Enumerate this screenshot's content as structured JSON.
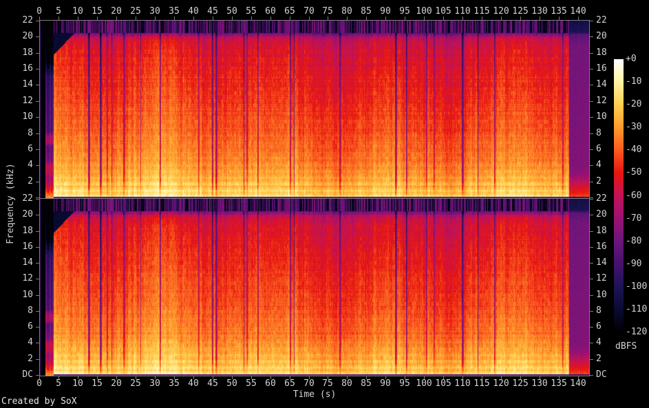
{
  "credit": "Created by SoX",
  "labels": {
    "time": "Time (s)",
    "frequency": "Frequency (kHz)",
    "dbfs": "dBFS"
  },
  "axes": {
    "time": {
      "label": "Time (s)",
      "tick_values": [
        0,
        5,
        10,
        15,
        20,
        25,
        30,
        35,
        40,
        45,
        50,
        55,
        60,
        65,
        70,
        75,
        80,
        85,
        90,
        95,
        100,
        105,
        110,
        115,
        120,
        125,
        130,
        135,
        140
      ]
    },
    "frequency": {
      "label": "Frequency (kHz)",
      "tick_values": [
        22,
        20,
        18,
        16,
        14,
        12,
        10,
        8,
        6,
        4,
        2,
        0
      ],
      "tick_labels": [
        "22",
        "20",
        "18",
        "16",
        "14",
        "12",
        "10",
        "8",
        "6",
        "4",
        "2",
        "DC"
      ]
    },
    "level": {
      "label": "dBFS",
      "tick_labels": [
        "+0",
        "-10",
        "-20",
        "-30",
        "-40",
        "-50",
        "-60",
        "-70",
        "-80",
        "-90",
        "-100",
        "-110",
        "-120"
      ]
    }
  },
  "chart_data": {
    "type": "heatmap",
    "subtype": "stereo-audio-spectrogram",
    "generator": "SoX spectrogram",
    "channels": 2,
    "x_axis": {
      "label": "Time (s)",
      "min": 0,
      "max": 143,
      "tick_step": 5,
      "last_tick": 140
    },
    "y_axis": {
      "label": "Frequency (kHz)",
      "min": 0,
      "max": 22,
      "tick_step": 2,
      "bottom_label": "DC"
    },
    "z_axis": {
      "label": "dBFS",
      "min": -120,
      "max": 0,
      "tick_step": 10
    },
    "palette": [
      {
        "db": 0,
        "color": "#ffffff"
      },
      {
        "db": -10,
        "color": "#fff3a3"
      },
      {
        "db": -20,
        "color": "#ffcf4f"
      },
      {
        "db": -30,
        "color": "#ff9b2e"
      },
      {
        "db": -40,
        "color": "#fa5a1f"
      },
      {
        "db": -50,
        "color": "#e81511"
      },
      {
        "db": -60,
        "color": "#c31356"
      },
      {
        "db": -70,
        "color": "#9b1173"
      },
      {
        "db": -80,
        "color": "#6c167c"
      },
      {
        "db": -90,
        "color": "#45116c"
      },
      {
        "db": -100,
        "color": "#1d1456"
      },
      {
        "db": -110,
        "color": "#0a0a33"
      },
      {
        "db": -120,
        "color": "#000000"
      }
    ],
    "content_model": {
      "noise_floor_column_db": -92,
      "silence_end_s": 1.6,
      "intro_end_s": 3.7,
      "main_end_s": 137.6,
      "duration_s": 142.8,
      "lowpass_cutoff_khz": 20.5,
      "cutoff_fringe_khz": [
        20.0,
        20.5
      ],
      "stripe_density_above_cutoff": 0.62,
      "stripe_level_db_range": [
        -92,
        -72
      ],
      "dc_row_db": -86,
      "gap_cluster_s": [
        17,
        37
      ],
      "gap_depth_db_range": [
        18,
        42
      ],
      "spectral_envelope_db": [
        [
          0,
          -13
        ],
        [
          0.35,
          -16
        ],
        [
          0.8,
          -20
        ],
        [
          1.5,
          -23
        ],
        [
          3,
          -28
        ],
        [
          5,
          -35
        ],
        [
          8,
          -40
        ],
        [
          12,
          -45
        ],
        [
          16,
          -50
        ],
        [
          19,
          -54
        ],
        [
          19.6,
          -58
        ],
        [
          20.0,
          -63
        ],
        [
          20.2,
          -72
        ],
        [
          20.45,
          -76
        ],
        [
          20.5,
          -112
        ],
        [
          22,
          -116
        ]
      ],
      "intro_envelope_db": [
        [
          0,
          -30
        ],
        [
          0.5,
          -38
        ],
        [
          1,
          -46
        ],
        [
          1.5,
          -54
        ],
        [
          2.5,
          -64
        ],
        [
          3,
          -56
        ],
        [
          4,
          -55
        ],
        [
          4.6,
          -72
        ],
        [
          6.4,
          -78
        ],
        [
          6.9,
          -60
        ],
        [
          7.6,
          -62
        ],
        [
          8.2,
          -80
        ],
        [
          12,
          -85
        ],
        [
          15,
          -90
        ],
        [
          16,
          -102
        ],
        [
          17,
          -114
        ],
        [
          22,
          -118
        ]
      ],
      "tail_envelope_db": [
        [
          0,
          -82
        ],
        [
          0.15,
          -42
        ],
        [
          0.5,
          -47
        ],
        [
          1.2,
          -53
        ],
        [
          2,
          -61
        ],
        [
          2.8,
          -70
        ],
        [
          4,
          -75
        ],
        [
          19,
          -78
        ],
        [
          20.3,
          -84
        ],
        [
          20.6,
          -100
        ],
        [
          22,
          -104
        ]
      ]
    }
  }
}
